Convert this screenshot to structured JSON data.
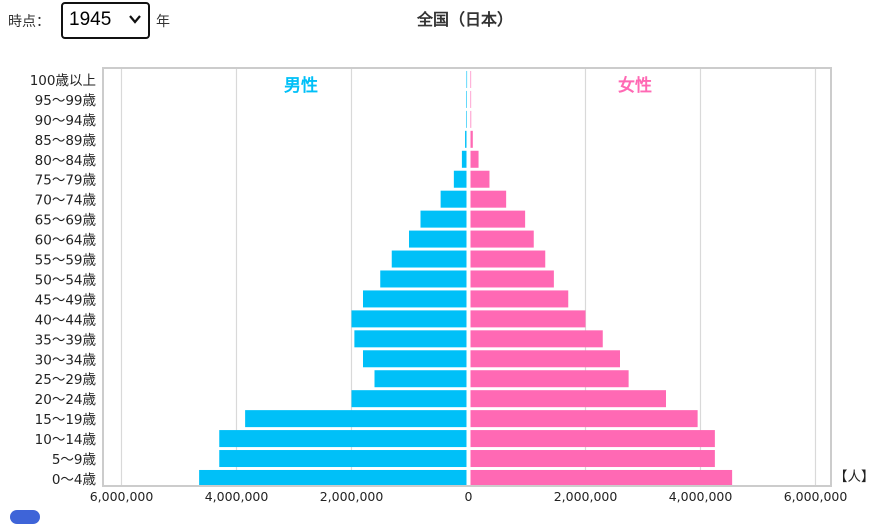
{
  "controls": {
    "year_label": "時点：",
    "year_value": "1945",
    "year_unit": "年"
  },
  "chart_data": {
    "type": "bar",
    "title": "全国（日本）",
    "male_label": "男性",
    "female_label": "女性",
    "unit_label": "【人】",
    "categories": [
      "0～4歳",
      "5～9歳",
      "10～14歳",
      "15～19歳",
      "20～24歳",
      "25～29歳",
      "30～34歳",
      "35～39歳",
      "40～44歳",
      "45～49歳",
      "50～54歳",
      "55～59歳",
      "60～64歳",
      "65～69歳",
      "70～74歳",
      "75～79歳",
      "80～84歳",
      "85～89歳",
      "90～94歳",
      "95～99歳",
      "100歳以上"
    ],
    "series": [
      {
        "name": "男性",
        "values": [
          4650000,
          4300000,
          4300000,
          3850000,
          2000000,
          1600000,
          1800000,
          1950000,
          2000000,
          1800000,
          1500000,
          1300000,
          1000000,
          800000,
          450000,
          220000,
          80000,
          25000,
          8000,
          2000,
          300
        ]
      },
      {
        "name": "女性",
        "values": [
          4550000,
          4250000,
          4250000,
          3950000,
          3400000,
          2750000,
          2600000,
          2300000,
          2000000,
          1700000,
          1450000,
          1300000,
          1100000,
          950000,
          620000,
          330000,
          140000,
          40000,
          12000,
          3000,
          500
        ]
      }
    ],
    "xlim": [
      -6000000,
      6000000
    ],
    "xticks": [
      "6,000,000",
      "4,000,000",
      "2,000,000",
      "0",
      "2,000,000",
      "4,000,000",
      "6,000,000"
    ],
    "grid": true,
    "colors": {
      "male": "#00c0f8",
      "female": "#ff69b4",
      "grid": "#d9d9d9",
      "frame": "#cccccc"
    }
  }
}
